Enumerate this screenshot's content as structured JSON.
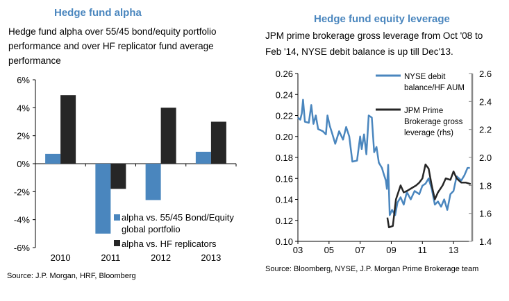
{
  "chart_data": [
    {
      "type": "bar",
      "title": "Hedge fund alpha",
      "subtitle": "Hedge fund alpha over 55/45 bond/equity portfolio performance and over HF replicator fund average performance",
      "categories": [
        "2010",
        "2011",
        "2012",
        "2013"
      ],
      "series": [
        {
          "name": "alpha vs. 55/45 Bond/Equity global portfolio",
          "color": "#4a86be",
          "values": [
            0.7,
            -5.0,
            -2.6,
            0.85
          ]
        },
        {
          "name": "alpha vs. HF replicators",
          "color": "#262626",
          "values": [
            4.9,
            -1.8,
            4.0,
            3.0
          ]
        }
      ],
      "ylim": [
        -6,
        6
      ],
      "yticks": [
        "6%",
        "4%",
        "2%",
        "0%",
        "-2%",
        "-4%",
        "-6%"
      ],
      "ytick_values": [
        6,
        4,
        2,
        0,
        -2,
        -4,
        -6
      ],
      "legend": "bottom-right",
      "grid": false,
      "source": "Source: J.P. Morgan, HRF, Bloomberg"
    },
    {
      "type": "line",
      "title": "Hedge fund equity leverage",
      "subtitle": "JPM prime brokerage gross leverage from Oct '08 to Feb '14, NYSE debit balance is up till Dec'13.",
      "xticks": [
        "03",
        "05",
        "07",
        "09",
        "11",
        "13"
      ],
      "xtick_values": [
        2003,
        2005,
        2007,
        2009,
        2011,
        2013
      ],
      "xlim": [
        2003,
        2014.2
      ],
      "ylim": [
        0.1,
        0.26
      ],
      "yticks": [
        "0.26",
        "0.24",
        "0.22",
        "0.20",
        "0.18",
        "0.16",
        "0.14",
        "0.12",
        "0.10"
      ],
      "y2lim": [
        1.4,
        2.6
      ],
      "y2ticks": [
        "2.6",
        "2.4",
        "2.2",
        "2.0",
        "1.8",
        "1.6",
        "1.4"
      ],
      "series": [
        {
          "name": "NYSE debit balance/HF AUM",
          "axis": "left",
          "color": "#4a86be",
          "points": [
            [
              2003.0,
              0.218
            ],
            [
              2003.15,
              0.216
            ],
            [
              2003.25,
              0.222
            ],
            [
              2003.33,
              0.235
            ],
            [
              2003.45,
              0.214
            ],
            [
              2003.7,
              0.213
            ],
            [
              2003.86,
              0.23
            ],
            [
              2004.0,
              0.212
            ],
            [
              2004.15,
              0.22
            ],
            [
              2004.3,
              0.207
            ],
            [
              2004.6,
              0.205
            ],
            [
              2004.8,
              0.202
            ],
            [
              2004.9,
              0.22
            ],
            [
              2005.05,
              0.21
            ],
            [
              2005.2,
              0.203
            ],
            [
              2005.4,
              0.193
            ],
            [
              2005.65,
              0.205
            ],
            [
              2005.9,
              0.197
            ],
            [
              2006.1,
              0.209
            ],
            [
              2006.3,
              0.2
            ],
            [
              2006.5,
              0.176
            ],
            [
              2006.8,
              0.177
            ],
            [
              2007.0,
              0.2
            ],
            [
              2007.1,
              0.188
            ],
            [
              2007.25,
              0.202
            ],
            [
              2007.4,
              0.183
            ],
            [
              2007.55,
              0.22
            ],
            [
              2007.75,
              0.218
            ],
            [
              2007.9,
              0.185
            ],
            [
              2008.05,
              0.19
            ],
            [
              2008.2,
              0.175
            ],
            [
              2008.4,
              0.17
            ],
            [
              2008.5,
              0.165
            ],
            [
              2008.65,
              0.158
            ],
            [
              2008.72,
              0.15
            ],
            [
              2008.8,
              0.173
            ],
            [
              2008.9,
              0.125
            ],
            [
              2009.05,
              0.13
            ],
            [
              2009.25,
              0.125
            ],
            [
              2009.4,
              0.137
            ],
            [
              2009.6,
              0.142
            ],
            [
              2009.8,
              0.135
            ],
            [
              2010.0,
              0.147
            ],
            [
              2010.25,
              0.14
            ],
            [
              2010.5,
              0.148
            ],
            [
              2010.8,
              0.145
            ],
            [
              2011.0,
              0.153
            ],
            [
              2011.2,
              0.155
            ],
            [
              2011.4,
              0.16
            ],
            [
              2011.6,
              0.15
            ],
            [
              2011.8,
              0.135
            ],
            [
              2012.0,
              0.138
            ],
            [
              2012.2,
              0.133
            ],
            [
              2012.4,
              0.14
            ],
            [
              2012.6,
              0.13
            ],
            [
              2012.8,
              0.145
            ],
            [
              2013.0,
              0.148
            ],
            [
              2013.2,
              0.162
            ],
            [
              2013.5,
              0.158
            ],
            [
              2013.7,
              0.163
            ],
            [
              2013.9,
              0.17
            ],
            [
              2014.05,
              0.17
            ]
          ]
        },
        {
          "name": "JPM Prime Brokerage gross leverage (rhs)",
          "axis": "right",
          "color": "#262626",
          "points": [
            [
              2008.75,
              1.57
            ],
            [
              2008.85,
              1.5
            ],
            [
              2009.1,
              1.51
            ],
            [
              2009.3,
              1.7
            ],
            [
              2009.6,
              1.8
            ],
            [
              2009.8,
              1.75
            ],
            [
              2010.0,
              1.76
            ],
            [
              2010.3,
              1.78
            ],
            [
              2010.6,
              1.8
            ],
            [
              2010.8,
              1.82
            ],
            [
              2011.0,
              1.85
            ],
            [
              2011.2,
              1.95
            ],
            [
              2011.4,
              1.92
            ],
            [
              2011.6,
              1.8
            ],
            [
              2011.8,
              1.7
            ],
            [
              2012.0,
              1.75
            ],
            [
              2012.3,
              1.8
            ],
            [
              2012.5,
              1.85
            ],
            [
              2012.8,
              1.84
            ],
            [
              2013.0,
              1.9
            ],
            [
              2013.2,
              1.85
            ],
            [
              2013.5,
              1.82
            ],
            [
              2013.8,
              1.82
            ],
            [
              2014.1,
              1.81
            ]
          ]
        }
      ],
      "legend": "top-right",
      "grid": false,
      "source": "Source: Bloomberg, NYSE, J.P. Morgan Prime Brokerage team"
    }
  ]
}
